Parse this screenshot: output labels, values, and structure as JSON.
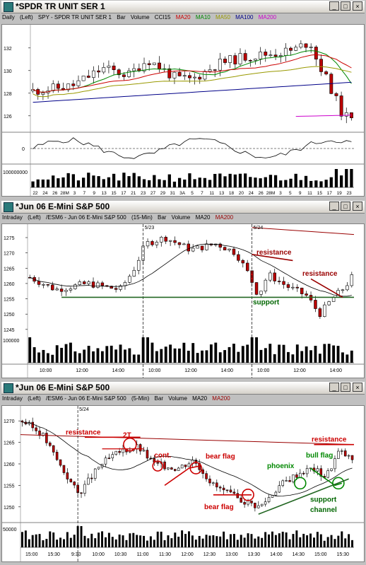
{
  "windows": [
    {
      "title": "*SPDR TR UNIT SER 1",
      "info": [
        {
          "text": "Daily",
          "color": "#000000"
        },
        {
          "text": "(Left)",
          "color": "#000000"
        },
        {
          "text": "SPY - SPDR TR UNIT SER 1",
          "color": "#000000"
        },
        {
          "text": "Bar",
          "color": "#000000"
        },
        {
          "text": "Volume",
          "color": "#000000"
        },
        {
          "text": "CCI15",
          "color": "#000000"
        },
        {
          "text": "MA20",
          "color": "#cc0000"
        },
        {
          "text": "MA10",
          "color": "#008800"
        },
        {
          "text": "MA50",
          "color": "#999900"
        },
        {
          "text": "MA100",
          "color": "#000088"
        },
        {
          "text": "MA200",
          "color": "#cc00cc"
        }
      ]
    },
    {
      "title": "*Jun 06  E-Mini S&P 500",
      "info": [
        {
          "text": "Intraday",
          "color": "#000000"
        },
        {
          "text": "(Left)",
          "color": "#000000"
        },
        {
          "text": "/ESM6 - Jun 06  E-Mini S&P 500",
          "color": "#000000"
        },
        {
          "text": "(15-Min)",
          "color": "#000000"
        },
        {
          "text": "Bar",
          "color": "#000000"
        },
        {
          "text": "Volume",
          "color": "#000000"
        },
        {
          "text": "MA20",
          "color": "#000000"
        },
        {
          "text": "MA200",
          "color": "#990000"
        }
      ]
    },
    {
      "title": "*Jun 06  E-Mini S&P 500",
      "info": [
        {
          "text": "Intraday",
          "color": "#000000"
        },
        {
          "text": "(Left)",
          "color": "#000000"
        },
        {
          "text": "/ESM6 - Jun 06  E-Mini S&P 500",
          "color": "#000000"
        },
        {
          "text": "(5-Min)",
          "color": "#000000"
        },
        {
          "text": "Bar",
          "color": "#000000"
        },
        {
          "text": "Volume",
          "color": "#000000"
        },
        {
          "text": "MA20",
          "color": "#000000"
        },
        {
          "text": "MA200",
          "color": "#990000"
        }
      ]
    }
  ],
  "window_buttons": [
    "_",
    "□",
    "×"
  ],
  "chart_data": [
    {
      "type": "candlestick",
      "interval": "Daily",
      "y_ticks": [
        126,
        128,
        130,
        132
      ],
      "ylim": [
        124.8,
        133.8
      ],
      "x_ticks": [
        "22",
        "24",
        "26",
        "28M",
        "3",
        "7",
        "9",
        "13",
        "15",
        "17",
        "21",
        "23",
        "27",
        "29",
        "31",
        "3A",
        "5",
        "7",
        "11",
        "13",
        "18",
        "20",
        "24",
        "26",
        "28M",
        "3",
        "5",
        "9",
        "11",
        "15",
        "17",
        "19",
        "23"
      ],
      "moving_averages": [
        {
          "name": "MA10",
          "color": "#008800"
        },
        {
          "name": "MA20",
          "color": "#cc0000"
        },
        {
          "name": "MA50",
          "color": "#999900"
        },
        {
          "name": "MA100",
          "color": "#000088"
        },
        {
          "name": "MA200",
          "color": "#cc00cc"
        }
      ],
      "cci": {
        "name": "CCI15",
        "y_ticks": [
          0
        ],
        "reference": "dashed zero line"
      },
      "volume": {
        "y_label": "100000000"
      }
    },
    {
      "type": "candlestick",
      "interval": "15-Min",
      "y_ticks": [
        1245,
        1250,
        1255,
        1260,
        1265,
        1270,
        1275
      ],
      "ylim": [
        1244.5,
        1278
      ],
      "x_ticks": [
        "10:00",
        "12:00",
        "14:00",
        "10:00",
        "12:00",
        "14:00",
        "10:00",
        "12:00",
        "14:00"
      ],
      "session_labels": [
        "5/23",
        "5/24"
      ],
      "volume": {
        "y_label": "100000"
      },
      "annotations": [
        {
          "text": "resistance",
          "color": "#990000"
        },
        {
          "text": "resistance",
          "color": "#990000"
        },
        {
          "text": "support",
          "color": "#006600"
        }
      ]
    },
    {
      "type": "candlestick",
      "interval": "5-Min",
      "y_ticks": [
        1250,
        1255,
        1260,
        1265,
        1270
      ],
      "ylim": [
        1247.5,
        1272.5
      ],
      "x_ticks": [
        "15:00",
        "15:30",
        "9:30",
        "10:00",
        "10:30",
        "11:00",
        "11:30",
        "12:00",
        "12:30",
        "13:00",
        "13:30",
        "14:00",
        "14:30",
        "15:00",
        "15:30"
      ],
      "session_labels": [
        "5/24"
      ],
      "volume": {
        "y_label": "50000"
      },
      "annotations": [
        {
          "text": "resistance",
          "color": "#cc0000"
        },
        {
          "text": "2T",
          "color": "#cc0000"
        },
        {
          "text": "cont.",
          "color": "#cc0000"
        },
        {
          "text": "bear flag",
          "color": "#cc0000"
        },
        {
          "text": "bear flag",
          "color": "#cc0000"
        },
        {
          "text": "phoenix",
          "color": "#008800"
        },
        {
          "text": "bull flag",
          "color": "#008800"
        },
        {
          "text": "resistance",
          "color": "#cc0000"
        },
        {
          "text": "support",
          "color": "#006600"
        },
        {
          "text": "channel",
          "color": "#006600"
        }
      ]
    }
  ]
}
